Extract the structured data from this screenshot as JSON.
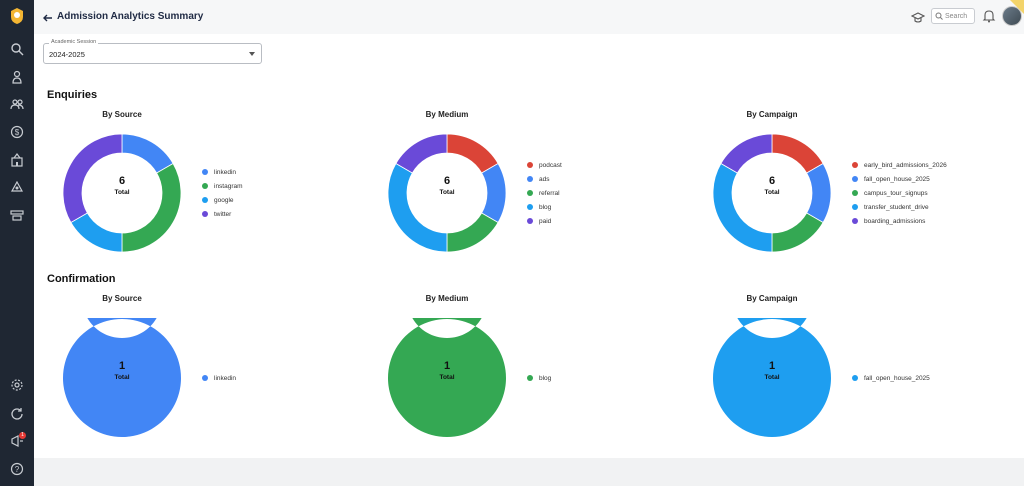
{
  "colors": {
    "linkedin": "#4286f5",
    "instagram": "#34a853",
    "google": "#1e9ef0",
    "twitter": "#6a4ad8",
    "podcast": "#db4437",
    "sidebar_bg": "#1f2733"
  },
  "header": {
    "title": "Admission Analytics Summary",
    "search_placeholder": "Search"
  },
  "sidebar": {
    "icons": [
      "logo-icon",
      "search-icon",
      "user-icon",
      "users-icon",
      "dollar-icon",
      "building-icon",
      "recycle-icon",
      "tools-icon",
      "settings-icon",
      "refresh-icon",
      "megaphone-icon",
      "help-icon"
    ],
    "notification_count": "1"
  },
  "filter": {
    "label": "Academic Session",
    "value": "2024-2025"
  },
  "sections": {
    "enquiries": {
      "title": "Enquiries",
      "charts": [
        {
          "title": "By Source",
          "total": "6",
          "total_label": "Total",
          "segments": [
            {
              "label": "linkedin",
              "value": 1,
              "color": "#4286f5"
            },
            {
              "label": "instagram",
              "value": 2,
              "color": "#34a853"
            },
            {
              "label": "google",
              "value": 1,
              "color": "#1e9ef0"
            },
            {
              "label": "twitter",
              "value": 2,
              "color": "#6a4ad8"
            }
          ]
        },
        {
          "title": "By Medium",
          "total": "6",
          "total_label": "Total",
          "segments": [
            {
              "label": "podcast",
              "value": 1,
              "color": "#db4437"
            },
            {
              "label": "ads",
              "value": 1,
              "color": "#4286f5"
            },
            {
              "label": "referral",
              "value": 1,
              "color": "#34a853"
            },
            {
              "label": "blog",
              "value": 2,
              "color": "#1e9ef0"
            },
            {
              "label": "paid",
              "value": 1,
              "color": "#6a4ad8"
            }
          ]
        },
        {
          "title": "By Campaign",
          "total": "6",
          "total_label": "Total",
          "segments": [
            {
              "label": "early_bird_admissions_2026",
              "value": 1,
              "color": "#db4437"
            },
            {
              "label": "fall_open_house_2025",
              "value": 1,
              "color": "#4286f5"
            },
            {
              "label": "campus_tour_signups",
              "value": 1,
              "color": "#34a853"
            },
            {
              "label": "transfer_student_drive",
              "value": 2,
              "color": "#1e9ef0"
            },
            {
              "label": "boarding_admissions",
              "value": 1,
              "color": "#6a4ad8"
            }
          ]
        }
      ]
    },
    "confirmation": {
      "title": "Confirmation",
      "charts": [
        {
          "title": "By Source",
          "total": "1",
          "total_label": "Total",
          "segments": [
            {
              "label": "linkedin",
              "value": 1,
              "color": "#4286f5"
            }
          ]
        },
        {
          "title": "By Medium",
          "total": "1",
          "total_label": "Total",
          "segments": [
            {
              "label": "blog",
              "value": 1,
              "color": "#34a853"
            }
          ]
        },
        {
          "title": "By Campaign",
          "total": "1",
          "total_label": "Total",
          "segments": [
            {
              "label": "fall_open_house_2025",
              "value": 1,
              "color": "#1e9ef0"
            }
          ]
        }
      ]
    }
  }
}
